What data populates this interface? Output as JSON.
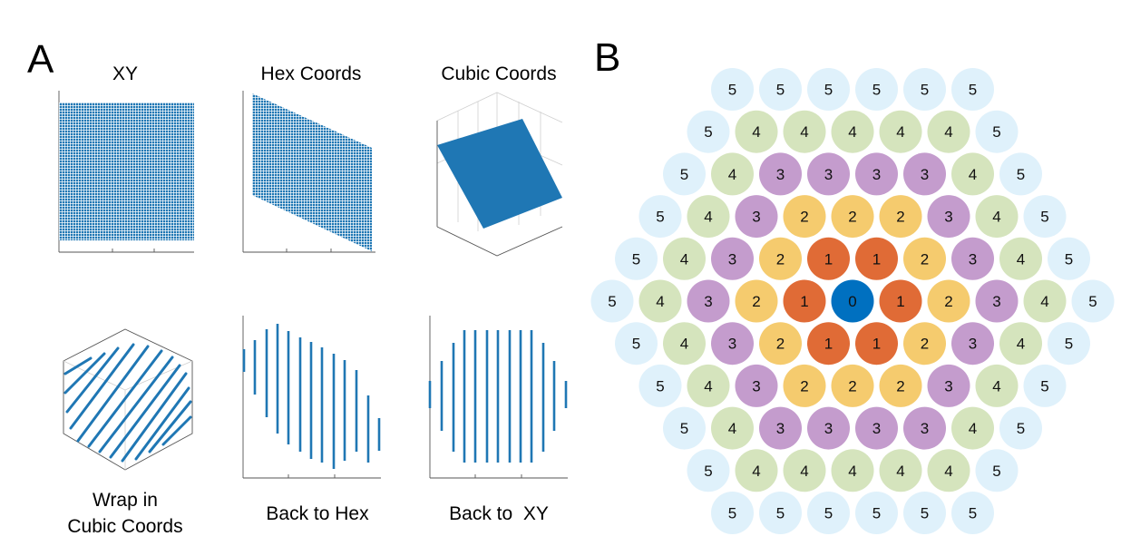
{
  "panel_a": {
    "letter": "A",
    "plots": [
      {
        "title_lines": [
          "XY"
        ]
      },
      {
        "title_lines": [
          "Hex Coords"
        ]
      },
      {
        "title_lines": [
          "Cubic Coords"
        ]
      },
      {
        "title_lines": [
          "Wrap in",
          "Cubic Coords"
        ]
      },
      {
        "title_lines": [
          "Back to Hex"
        ]
      },
      {
        "title_lines": [
          "Back to  XY"
        ]
      }
    ]
  },
  "panel_b": {
    "letter": "B",
    "radius": 5,
    "ring_colors": [
      "#0070c0",
      "#e06b36",
      "#f5cb6e",
      "#c49ccd",
      "#d5e4bd",
      "#dff1fb"
    ]
  },
  "colors": {
    "marker_blue": "#1f77b4",
    "axis_gray": "#555555"
  }
}
